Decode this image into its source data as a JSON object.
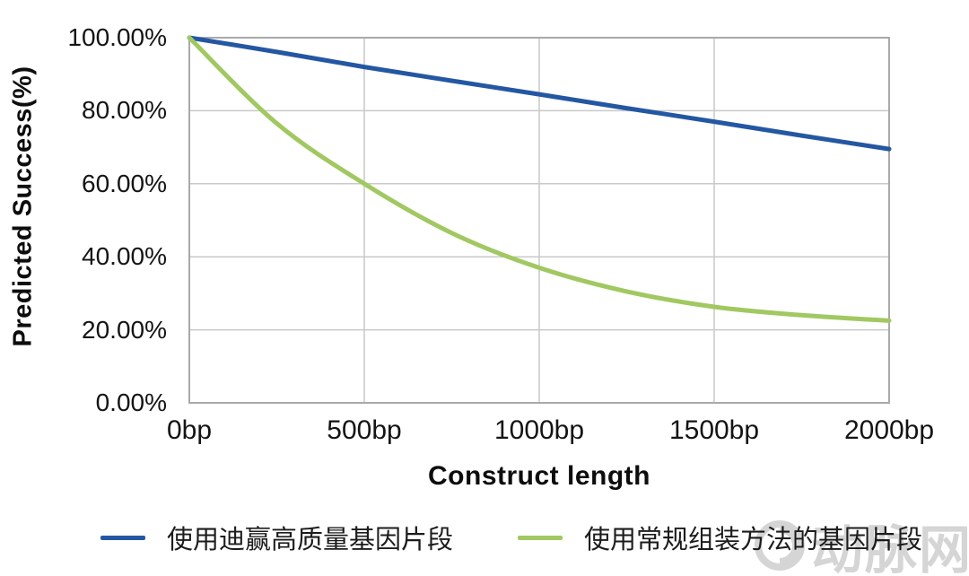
{
  "chart_data": {
    "type": "line",
    "title": "",
    "xlabel": "Construct length",
    "ylabel": "Predicted Success(%)",
    "xlim": [
      0,
      2000
    ],
    "ylim": [
      0,
      100
    ],
    "grid": true,
    "legend_position": "bottom",
    "x_ticks": [
      {
        "value": 0,
        "label": "0bp"
      },
      {
        "value": 500,
        "label": "500bp"
      },
      {
        "value": 1000,
        "label": "1000bp"
      },
      {
        "value": 1500,
        "label": "1500bp"
      },
      {
        "value": 2000,
        "label": "2000bp"
      }
    ],
    "y_ticks": [
      {
        "value": 0,
        "label": "0.00%"
      },
      {
        "value": 20,
        "label": "20.00%"
      },
      {
        "value": 40,
        "label": "40.00%"
      },
      {
        "value": 60,
        "label": "60.00%"
      },
      {
        "value": 80,
        "label": "80.00%"
      },
      {
        "value": 100,
        "label": "100.00%"
      }
    ],
    "series": [
      {
        "name": "使用迪赢高质量基因片段",
        "color": "#2457a3",
        "points": [
          [
            0,
            100
          ],
          [
            250,
            96.1
          ],
          [
            500,
            92.0
          ],
          [
            750,
            88.2
          ],
          [
            1000,
            84.5
          ],
          [
            1250,
            80.7
          ],
          [
            1500,
            77.0
          ],
          [
            1750,
            73.2
          ],
          [
            2000,
            69.5
          ]
        ]
      },
      {
        "name": "使用常规组装方法的基因片段",
        "color": "#a1c861",
        "points": [
          [
            0,
            100
          ],
          [
            250,
            76.5
          ],
          [
            500,
            60.0
          ],
          [
            750,
            46.5
          ],
          [
            1000,
            37.0
          ],
          [
            1250,
            30.5
          ],
          [
            1500,
            26.3
          ],
          [
            1750,
            24.0
          ],
          [
            2000,
            22.5
          ]
        ]
      }
    ]
  },
  "watermark": {
    "text": "动脉网"
  },
  "colors": {
    "grid": "#c9c9c9",
    "axis": "#a9a9a9",
    "tick_text": "#141414",
    "watermark": "#d5d5d5"
  }
}
